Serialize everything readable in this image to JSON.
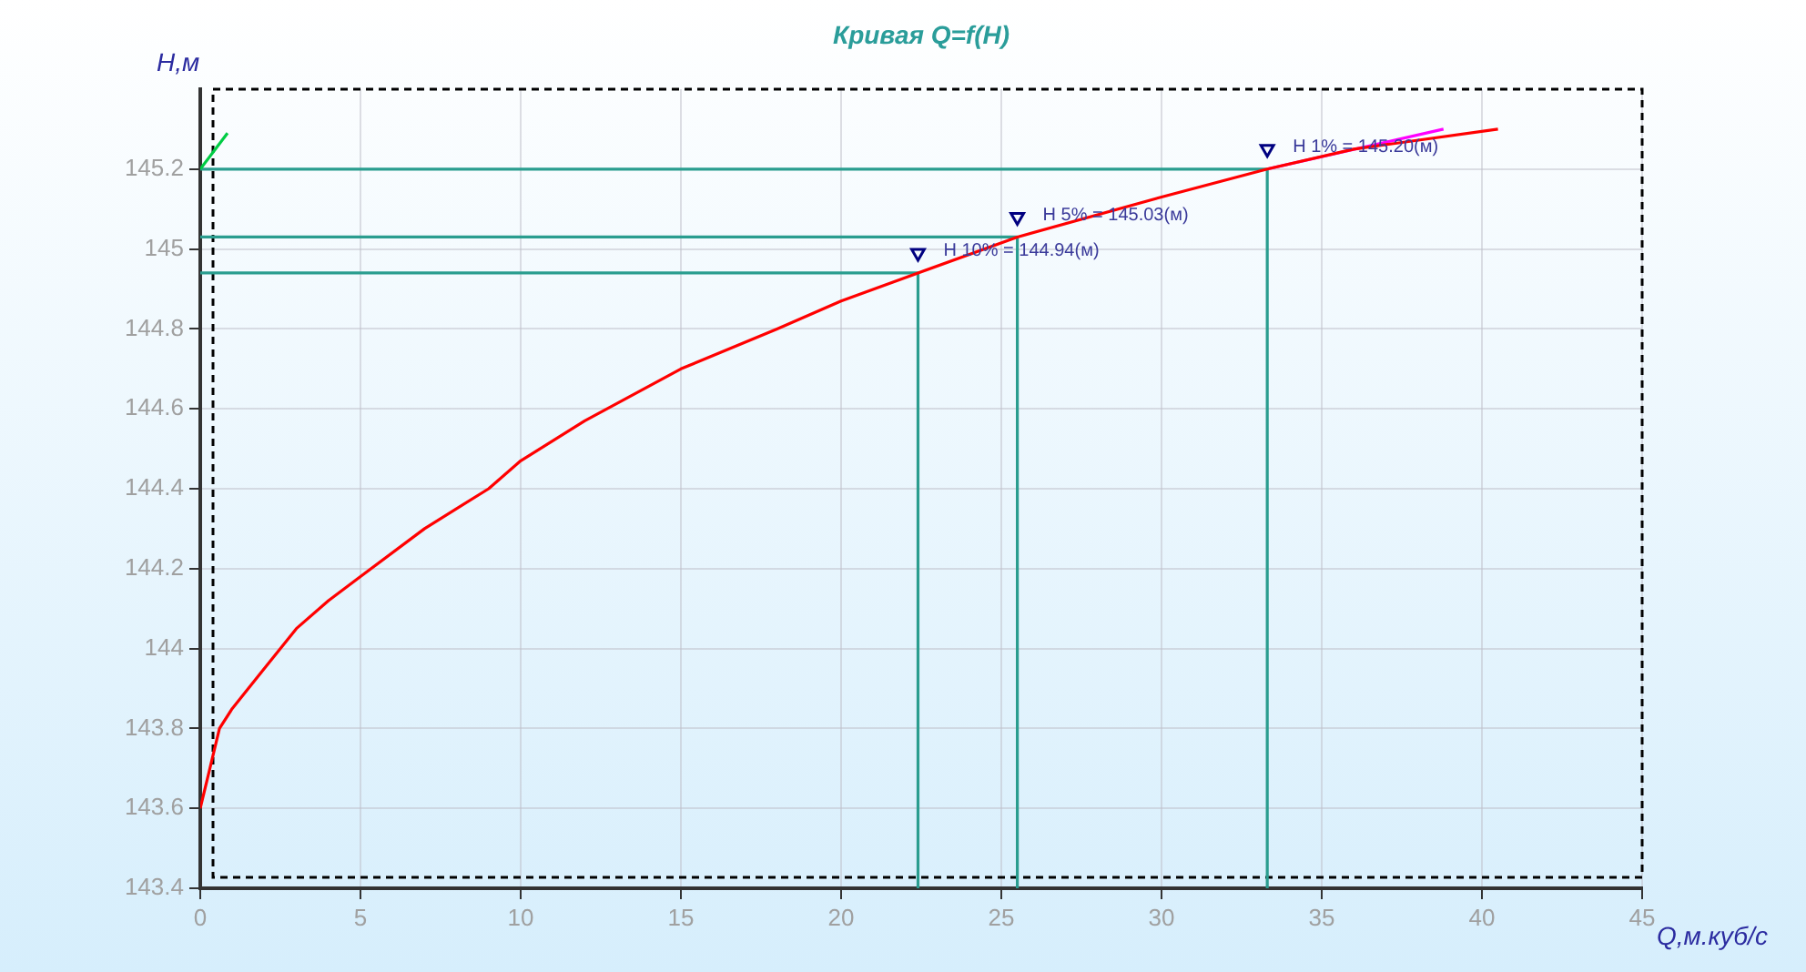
{
  "chart_data": {
    "type": "line",
    "title": "Кривая Q=f(H)",
    "xlabel": "Q,м.куб/с",
    "ylabel": "H,м",
    "xlim": [
      0,
      45
    ],
    "xticks": [
      0,
      5,
      10,
      15,
      20,
      25,
      30,
      35,
      40,
      45
    ],
    "ylim": [
      143.4,
      145.4
    ],
    "yticks": [
      143.4,
      143.6,
      143.8,
      144,
      144.2,
      144.4,
      144.6,
      144.8,
      145,
      145.2
    ],
    "grid": true,
    "legend": false,
    "marker": "none",
    "line_style": "solid",
    "series": [
      {
        "color": "#ff0000",
        "x": [
          0,
          0.3,
          0.6,
          1,
          2,
          3,
          4,
          5,
          7,
          9,
          10,
          12,
          15,
          18,
          20,
          22.4,
          25.5,
          30,
          33.3,
          36,
          40.5
        ],
        "values": [
          143.6,
          143.7,
          143.8,
          143.85,
          143.95,
          144.05,
          144.12,
          144.18,
          144.3,
          144.4,
          144.47,
          144.57,
          144.7,
          144.8,
          144.87,
          144.94,
          145.03,
          145.13,
          145.2,
          145.25,
          145.3
        ]
      },
      {
        "color": "#ff00ff",
        "x": [
          33.3,
          38.8
        ],
        "values": [
          145.2,
          145.3
        ]
      },
      {
        "color": "#00cc44",
        "x": [
          0,
          0.85
        ],
        "values": [
          145.2,
          145.29
        ]
      },
      {
        "color": "#2a9d8f",
        "x": [
          0,
          22.4,
          22.4
        ],
        "values": [
          144.94,
          144.94,
          143.4
        ]
      },
      {
        "color": "#2a9d8f",
        "x": [
          0,
          25.5,
          25.5
        ],
        "values": [
          145.03,
          145.03,
          143.4
        ]
      },
      {
        "color": "#2a9d8f",
        "x": [
          0,
          33.3,
          33.3
        ],
        "values": [
          145.2,
          145.2,
          143.4
        ]
      },
      {
        "type": "scatter",
        "marker": "triangle",
        "color": "#000080",
        "x": [
          22.4,
          25.5,
          33.3
        ],
        "values": [
          144.99,
          145.08,
          145.25
        ]
      }
    ],
    "annotations": [
      {
        "text": "H 10% = 144.94(м)",
        "x": 22.4,
        "y": 144.94
      },
      {
        "text": "H 5% = 145.03(м)",
        "x": 25.5,
        "y": 145.03
      },
      {
        "text": "H 1% = 145.20(м)",
        "x": 33.3,
        "y": 145.2
      }
    ]
  }
}
